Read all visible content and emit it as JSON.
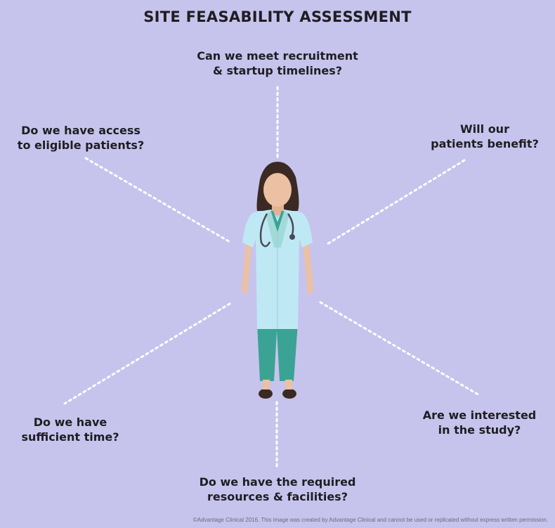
{
  "title": "SITE FEASABILITY ASSESSMENT",
  "questions": {
    "top": {
      "line1": "Can we meet recruitment",
      "line2": "& startup timelines?"
    },
    "top_left": {
      "line1": "Do we have access",
      "line2": "to eligible patients?"
    },
    "top_right": {
      "line1": "Will our",
      "line2": "patients benefit?"
    },
    "bottom_left": {
      "line1": "Do we have",
      "line2": "sufficient time?"
    },
    "bottom_right": {
      "line1": "Are we interested",
      "line2": "in the study?"
    },
    "bottom": {
      "line1": "Do we have the required",
      "line2": "resources & facilities?"
    }
  },
  "footer": "©Advantage Clinical 2016. This image was created by Advantage Clinical and cannot be used or replicated without express written permission.",
  "colors": {
    "background": "#c6c4ec",
    "coat": "#bfe8f5",
    "scrubs": "#3aa394",
    "skin": "#ecc0a3",
    "hair": "#3b2a24"
  }
}
